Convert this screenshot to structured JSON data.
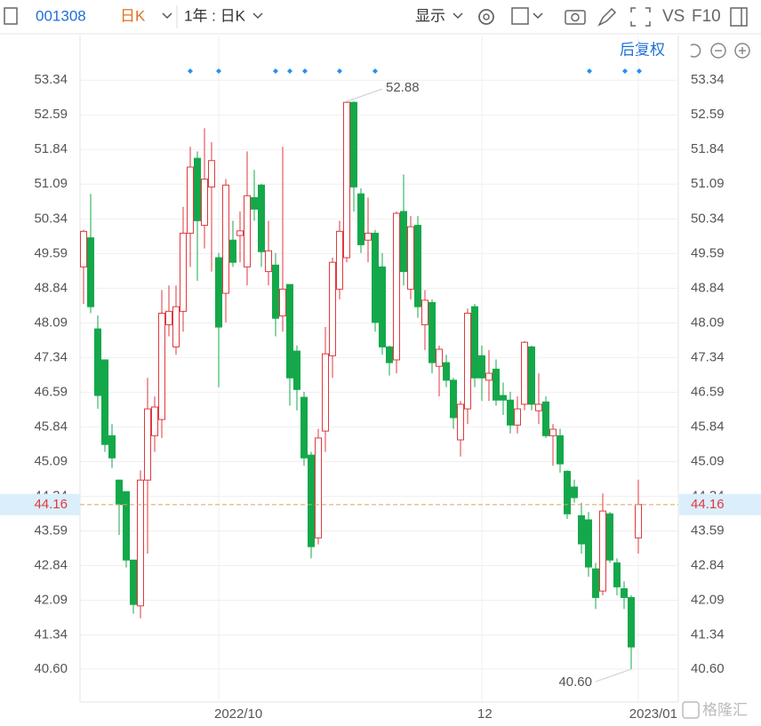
{
  "toolbar": {
    "code": "001308",
    "period": "日K",
    "range": "1年 : 日K",
    "display": "显示",
    "vs": "VS",
    "f10": "F10",
    "adjust": "后复权"
  },
  "watermark": "格隆汇",
  "chart_data": {
    "type": "candlestick",
    "up_color": "#e0393e",
    "down_color": "#14a84a",
    "categories": [
      null,
      null,
      null,
      null,
      null,
      null,
      null,
      null,
      null,
      null,
      null,
      null,
      null,
      null,
      null,
      null,
      null,
      null,
      null,
      "2022/10",
      null,
      null,
      null,
      null,
      null,
      null,
      null,
      null,
      null,
      null,
      null,
      null,
      null,
      null,
      null,
      null,
      null,
      null,
      null,
      null,
      null,
      null,
      null,
      null,
      null,
      null,
      null,
      null,
      null,
      null,
      null,
      null,
      null,
      null,
      null,
      null,
      "12",
      null,
      null,
      null,
      null,
      null,
      null,
      null,
      null,
      null,
      null,
      null,
      null,
      null,
      null,
      null,
      null,
      null,
      null,
      null,
      null,
      null,
      "2023/01"
    ],
    "open": [
      49.3,
      49.93,
      47.96,
      47.29,
      45.65,
      44.69,
      44.44,
      42.96,
      41.97,
      44.69,
      45.65,
      46.0,
      48.05,
      47.57,
      48.34,
      50.03,
      51.65,
      50.2,
      51.03,
      49.5,
      48.73,
      49.88,
      49.98,
      49.3,
      50.8,
      51.07,
      49.2,
      49.34,
      48.24,
      48.92,
      47.48,
      46.48,
      45.23,
      43.44,
      45.75,
      47.38,
      48.82,
      49.5,
      52.86,
      50.88,
      49.88,
      50.03,
      49.3,
      47.57,
      47.29,
      50.5,
      48.82,
      50.2,
      48.05,
      48.53,
      47.15,
      47.23,
      46.85,
      45.56,
      46.23,
      48.44,
      47.38,
      46.85,
      47.09,
      46.52,
      46.42,
      45.88,
      46.33,
      47.57,
      46.19,
      46.38,
      45.65,
      45.65,
      44.88,
      44.54,
      43.92,
      43.83,
      42.77,
      42.29,
      43.96,
      42.9,
      42.34,
      42.15,
      43.44
    ],
    "high": [
      50.1,
      50.88,
      48.25,
      47.3,
      45.9,
      44.7,
      44.44,
      42.96,
      44.9,
      46.9,
      46.5,
      48.8,
      48.9,
      48.9,
      50.6,
      51.9,
      51.8,
      52.3,
      52.0,
      49.6,
      51.2,
      50.3,
      50.5,
      51.8,
      51.4,
      51.1,
      50.3,
      49.6,
      51.9,
      48.9,
      47.6,
      46.6,
      45.3,
      45.8,
      48.0,
      49.5,
      50.3,
      52.88,
      52.88,
      51.0,
      50.8,
      50.1,
      49.6,
      47.6,
      50.5,
      51.3,
      50.4,
      50.4,
      48.8,
      48.6,
      47.6,
      47.4,
      46.9,
      46.4,
      48.4,
      48.5,
      47.6,
      47.5,
      47.3,
      46.8,
      46.6,
      46.5,
      47.7,
      47.6,
      47.0,
      46.5,
      45.9,
      45.8,
      44.9,
      44.7,
      44.2,
      44.0,
      42.9,
      44.4,
      44.0,
      43.0,
      42.5,
      42.2,
      44.7
    ],
    "low": [
      48.5,
      48.3,
      46.23,
      45.3,
      44.95,
      43.5,
      42.8,
      41.8,
      41.7,
      43.1,
      45.3,
      45.6,
      47.8,
      47.4,
      47.9,
      49.3,
      49.0,
      49.7,
      49.2,
      46.7,
      48.1,
      49.3,
      49.4,
      48.9,
      50.3,
      49.3,
      48.9,
      47.8,
      47.9,
      46.3,
      46.2,
      45.0,
      43.0,
      43.3,
      45.3,
      46.9,
      48.6,
      49.4,
      50.5,
      49.6,
      49.4,
      47.9,
      47.4,
      46.95,
      47.0,
      48.9,
      48.6,
      48.2,
      47.5,
      47.0,
      46.5,
      46.7,
      45.8,
      45.2,
      45.9,
      46.7,
      46.4,
      46.4,
      46.3,
      46.1,
      45.7,
      45.7,
      46.2,
      46.2,
      45.9,
      45.6,
      45.0,
      44.85,
      43.85,
      44.2,
      43.1,
      42.6,
      41.9,
      42.2,
      42.9,
      42.2,
      41.9,
      40.6,
      43.1
    ],
    "close": [
      50.07,
      48.44,
      46.52,
      45.46,
      45.17,
      44.16,
      42.96,
      42.0,
      44.69,
      46.23,
      46.27,
      48.3,
      48.34,
      48.44,
      50.03,
      51.46,
      50.3,
      51.2,
      51.6,
      48.0,
      51.07,
      49.4,
      50.08,
      50.84,
      50.55,
      49.63,
      49.65,
      48.19,
      48.82,
      46.9,
      46.65,
      45.17,
      43.25,
      45.6,
      47.42,
      49.4,
      50.07,
      52.86,
      51.03,
      49.78,
      50.03,
      48.1,
      47.57,
      47.23,
      50.46,
      49.2,
      50.17,
      48.44,
      48.58,
      47.23,
      47.52,
      46.85,
      46.04,
      46.33,
      48.3,
      46.9,
      46.9,
      47.0,
      46.42,
      46.42,
      45.88,
      46.23,
      47.67,
      46.33,
      46.33,
      45.65,
      45.79,
      45.04,
      43.96,
      44.31,
      43.31,
      42.81,
      42.15,
      44.02,
      42.96,
      42.38,
      42.15,
      41.08,
      44.16
    ],
    "ylim": [
      39.89,
      53.69
    ],
    "yticks": [
      {
        "value": 40.6,
        "label": "40.60"
      },
      41.34,
      42.09,
      42.84,
      43.59,
      44.34,
      45.09,
      45.84,
      46.59,
      47.34,
      48.09,
      48.84,
      49.59,
      50.34,
      51.09,
      51.84,
      52.59,
      53.34
    ],
    "current_price": 44.16,
    "annotations": [
      {
        "value": 52.88,
        "label": "52.88"
      },
      {
        "value": 40.6,
        "label": "40.60"
      }
    ],
    "grid": true
  }
}
